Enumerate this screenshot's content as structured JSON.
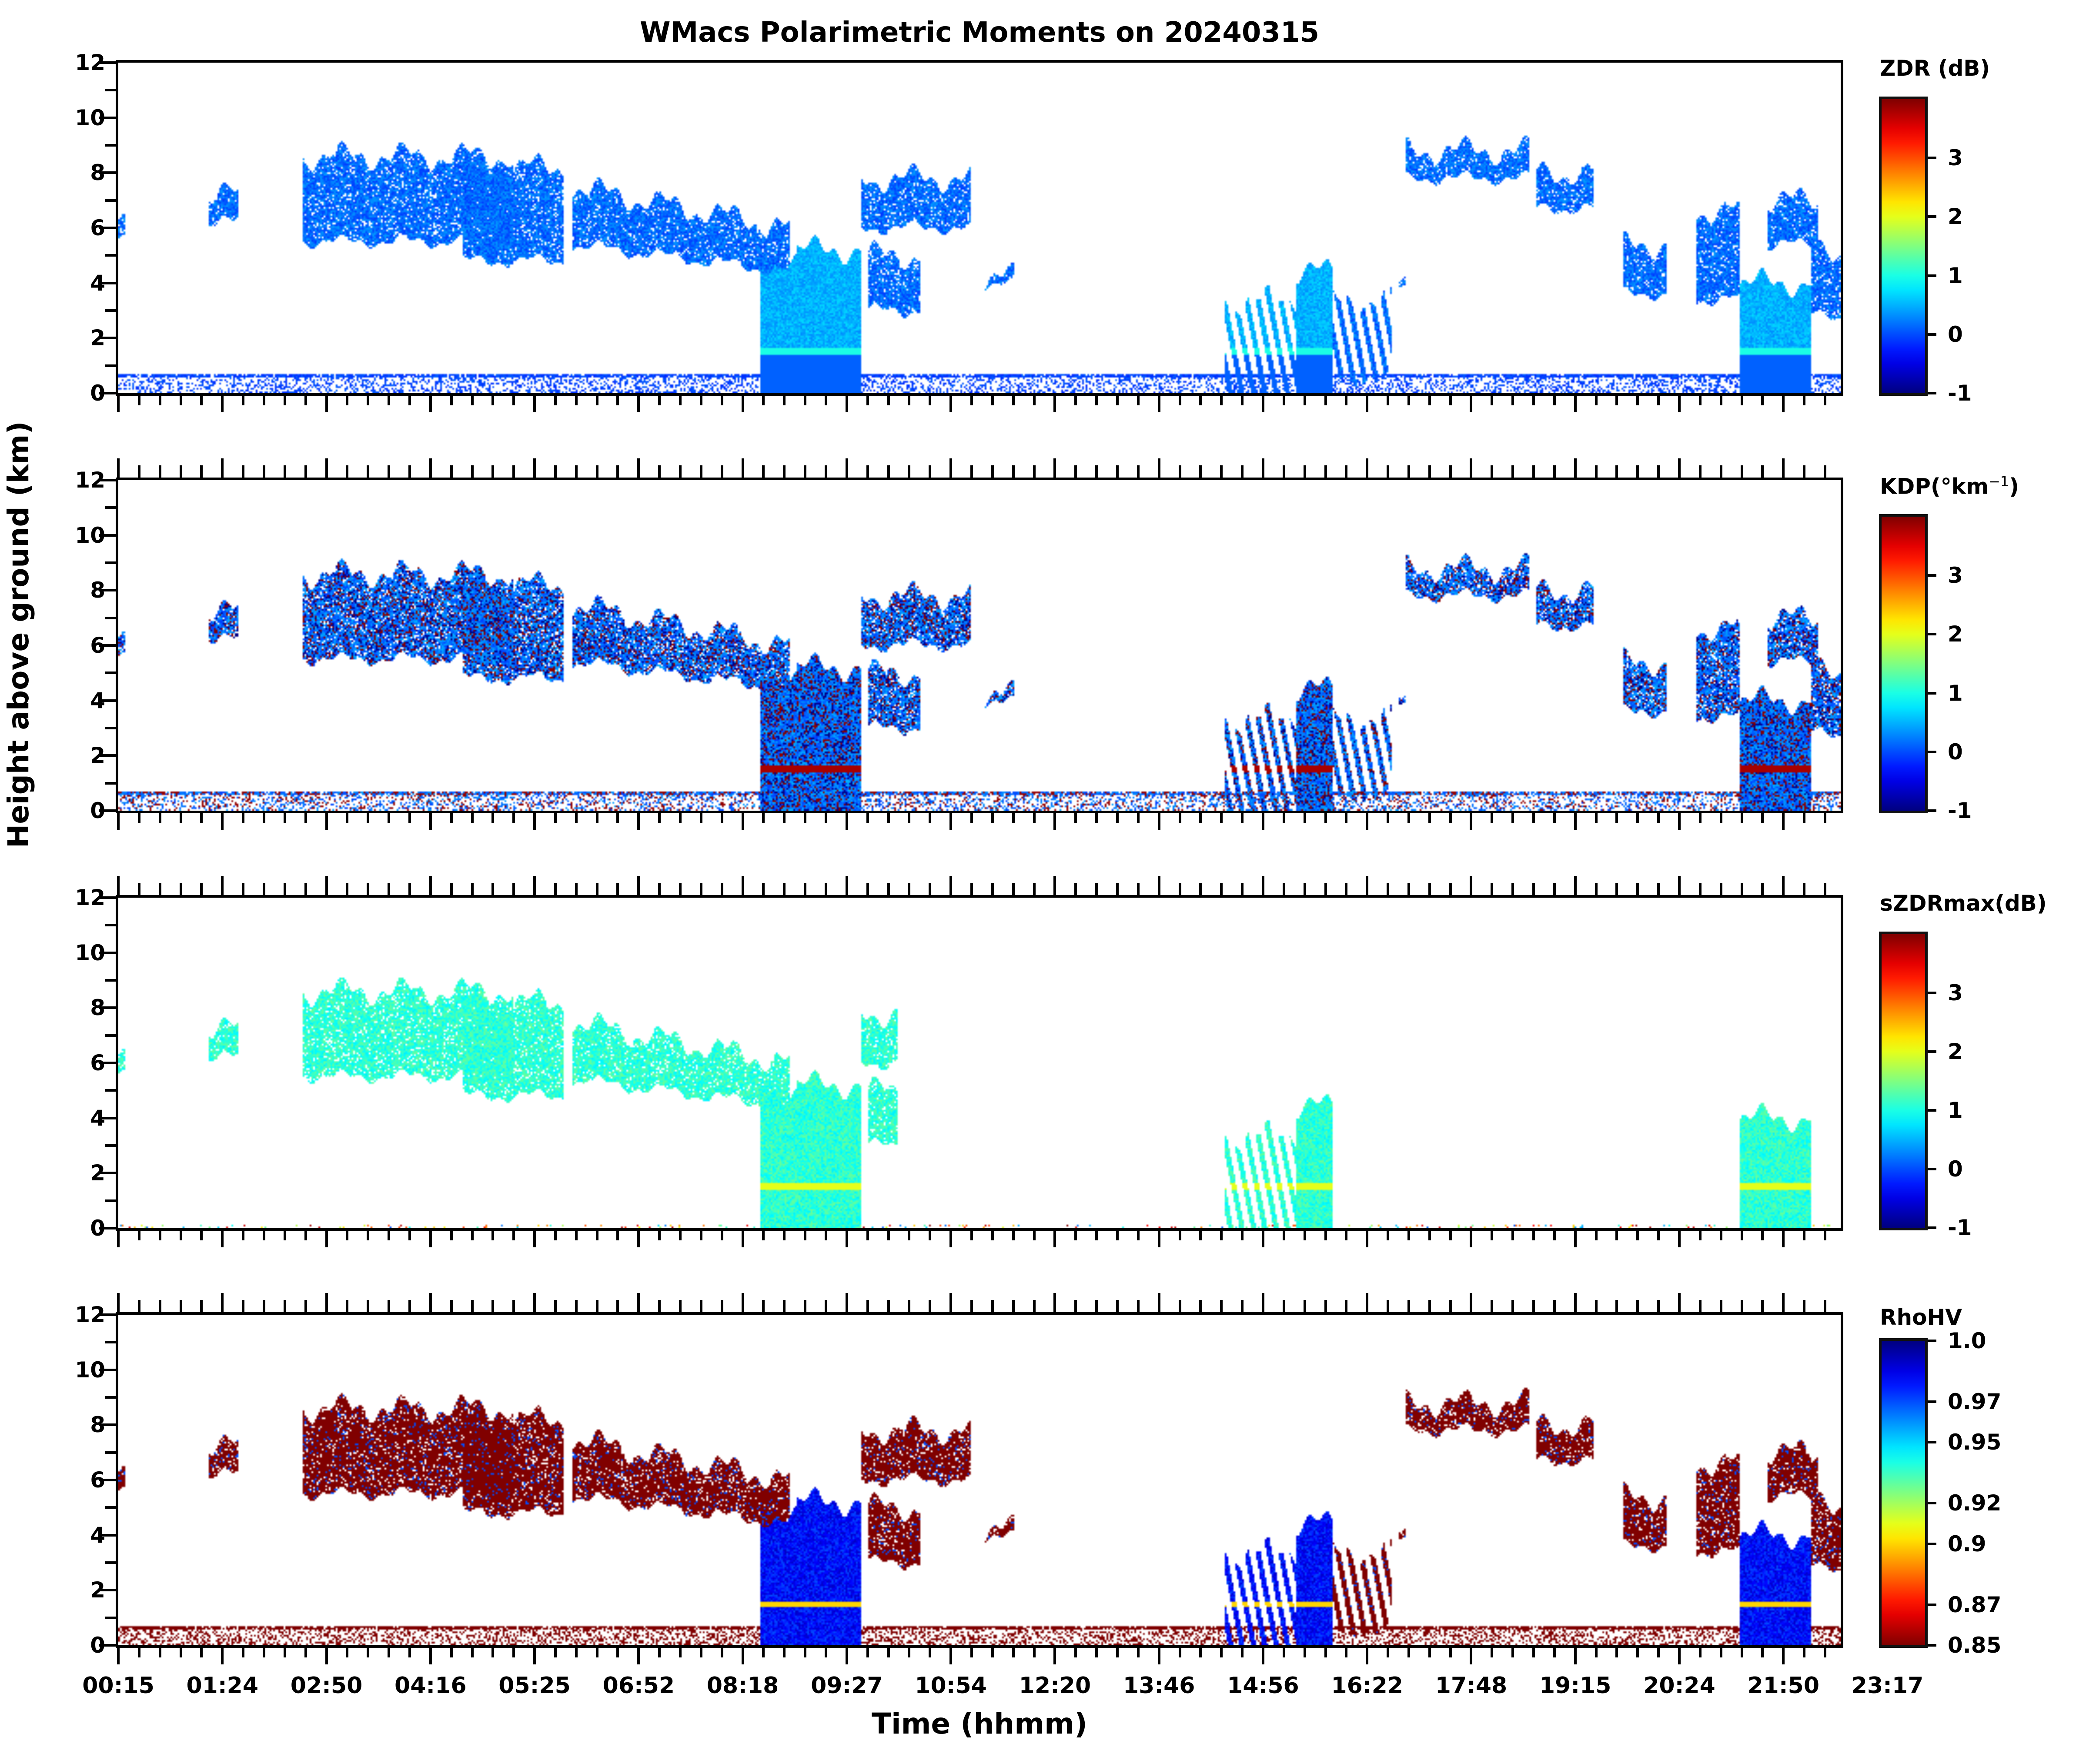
{
  "chart_data": {
    "type": "heatmap",
    "title": "WMacs Polarimetric Moments on 20240315",
    "xlabel": "Time (hhmm)",
    "ylabel": "Height above ground (km)",
    "x_tick_labels": [
      "00:15",
      "01:24",
      "02:50",
      "04:16",
      "05:25",
      "06:52",
      "08:18",
      "09:27",
      "10:54",
      "12:20",
      "13:46",
      "14:56",
      "16:22",
      "17:48",
      "19:15",
      "20:24",
      "21:50",
      "23:17"
    ],
    "x_range_hours": [
      0.25,
      24.0
    ],
    "x_major_tick_step_hours": 1.435,
    "x_minor_per_major": 5,
    "ylim": [
      0,
      12
    ],
    "y_ticks": [
      0,
      2,
      4,
      6,
      8,
      10,
      12
    ],
    "y_tick_labels": [
      "0",
      "2",
      "4",
      "6",
      "8",
      "10",
      "12"
    ],
    "y_minor_step": 1,
    "grid": false,
    "panels": [
      {
        "name": "ZDR",
        "colorbar_label": "ZDR (dB)",
        "colormap": "jet",
        "vmin": -1,
        "vmax": 4,
        "cbar_ticks": [
          -1,
          0,
          1,
          2,
          3
        ],
        "cbar_tick_labels": [
          "-1",
          "0",
          "1",
          "2",
          "3"
        ],
        "typical_value": -0.1,
        "precip_value": 0.3,
        "melting_layer_value": 1.0
      },
      {
        "name": "KDP",
        "colorbar_label_main": "KDP(°km",
        "colorbar_label_sup": "−1",
        "colorbar_label_end": ")",
        "colormap": "jet",
        "vmin": -1,
        "vmax": 4,
        "cbar_ticks": [
          -1,
          0,
          1,
          2,
          3
        ],
        "cbar_tick_labels": [
          "-1",
          "0",
          "1",
          "2",
          "3"
        ],
        "typical_value": -0.1,
        "noisy": true
      },
      {
        "name": "sZDRmax",
        "colorbar_label": "sZDRmax(dB)",
        "colormap": "jet",
        "vmin": -1,
        "vmax": 4,
        "cbar_ticks": [
          -1,
          0,
          1,
          2,
          3
        ],
        "cbar_tick_labels": [
          "-1",
          "0",
          "1",
          "2",
          "3"
        ],
        "typical_value": 0.8
      },
      {
        "name": "RhoHV",
        "colorbar_label": "RhoHV",
        "colormap": "jet_r",
        "vmin": 0.85,
        "vmax": 1.0,
        "cbar_ticks": [
          1.0,
          0.97,
          0.95,
          0.92,
          0.9,
          0.87,
          0.85
        ],
        "cbar_tick_labels": [
          "1.0",
          "0.97",
          "0.95",
          "0.92",
          "0.9",
          "0.87",
          "0.85"
        ],
        "typical_value": 0.85,
        "precip_value": 0.99
      }
    ],
    "echo_regions_hours_km": [
      {
        "t0": 0.25,
        "t1": 0.35,
        "z0": 5.5,
        "z1": 6.0,
        "kind": "cloud"
      },
      {
        "t0": 1.5,
        "t1": 1.9,
        "z0": 6.2,
        "z1": 7.2,
        "kind": "cloud"
      },
      {
        "t0": 2.8,
        "t1": 5.7,
        "z0": 5.5,
        "z1": 8.6,
        "kind": "cloud"
      },
      {
        "t0": 5.0,
        "t1": 6.4,
        "z0": 4.8,
        "z1": 8.2,
        "kind": "cloud"
      },
      {
        "t0": 6.5,
        "t1": 9.5,
        "z0": 4.4,
        "z1": 7.5,
        "kind": "cloud_slope"
      },
      {
        "t0": 9.1,
        "t1": 9.6,
        "z0": 0.0,
        "z1": 5.0,
        "kind": "precip"
      },
      {
        "t0": 9.6,
        "t1": 10.5,
        "z0": 0.0,
        "z1": 5.2,
        "kind": "precip"
      },
      {
        "t0": 10.5,
        "t1": 12.0,
        "z0": 6.0,
        "z1": 7.8,
        "kind": "cloud"
      },
      {
        "t0": 10.6,
        "t1": 11.3,
        "z0": 3.0,
        "z1": 5.0,
        "kind": "cloud"
      },
      {
        "t0": 12.2,
        "t1": 12.6,
        "z0": 3.9,
        "z1": 4.2,
        "kind": "cloud"
      },
      {
        "t0": 15.5,
        "t1": 16.5,
        "z0": 0.0,
        "z1": 3.4,
        "kind": "precip_streaks"
      },
      {
        "t0": 16.5,
        "t1": 17.0,
        "z0": 0.0,
        "z1": 4.4,
        "kind": "precip"
      },
      {
        "t0": 17.0,
        "t1": 17.8,
        "z0": 0.5,
        "z1": 3.4,
        "kind": "streaks"
      },
      {
        "t0": 17.9,
        "t1": 18.0,
        "z0": 3.9,
        "z1": 4.2,
        "kind": "cloud"
      },
      {
        "t0": 18.0,
        "t1": 19.7,
        "z0": 7.8,
        "z1": 8.8,
        "kind": "cloud"
      },
      {
        "t0": 19.8,
        "t1": 20.6,
        "z0": 6.7,
        "z1": 8.0,
        "kind": "cloud"
      },
      {
        "t0": 21.0,
        "t1": 21.6,
        "z0": 3.6,
        "z1": 5.4,
        "kind": "cloud"
      },
      {
        "t0": 22.0,
        "t1": 22.6,
        "z0": 3.4,
        "z1": 6.6,
        "kind": "cloud"
      },
      {
        "t0": 22.6,
        "t1": 23.6,
        "z0": 0.0,
        "z1": 4.0,
        "kind": "precip"
      },
      {
        "t0": 23.0,
        "t1": 23.7,
        "z0": 5.4,
        "z1": 7.0,
        "kind": "cloud"
      },
      {
        "t0": 23.6,
        "t1": 24.0,
        "z0": 2.8,
        "z1": 5.1,
        "kind": "cloud"
      }
    ],
    "melting_layer_km": 1.5,
    "clutter_layer_km": [
      0.0,
      0.7
    ]
  },
  "colors": {
    "frame": "#000000",
    "background": "#ffffff"
  }
}
